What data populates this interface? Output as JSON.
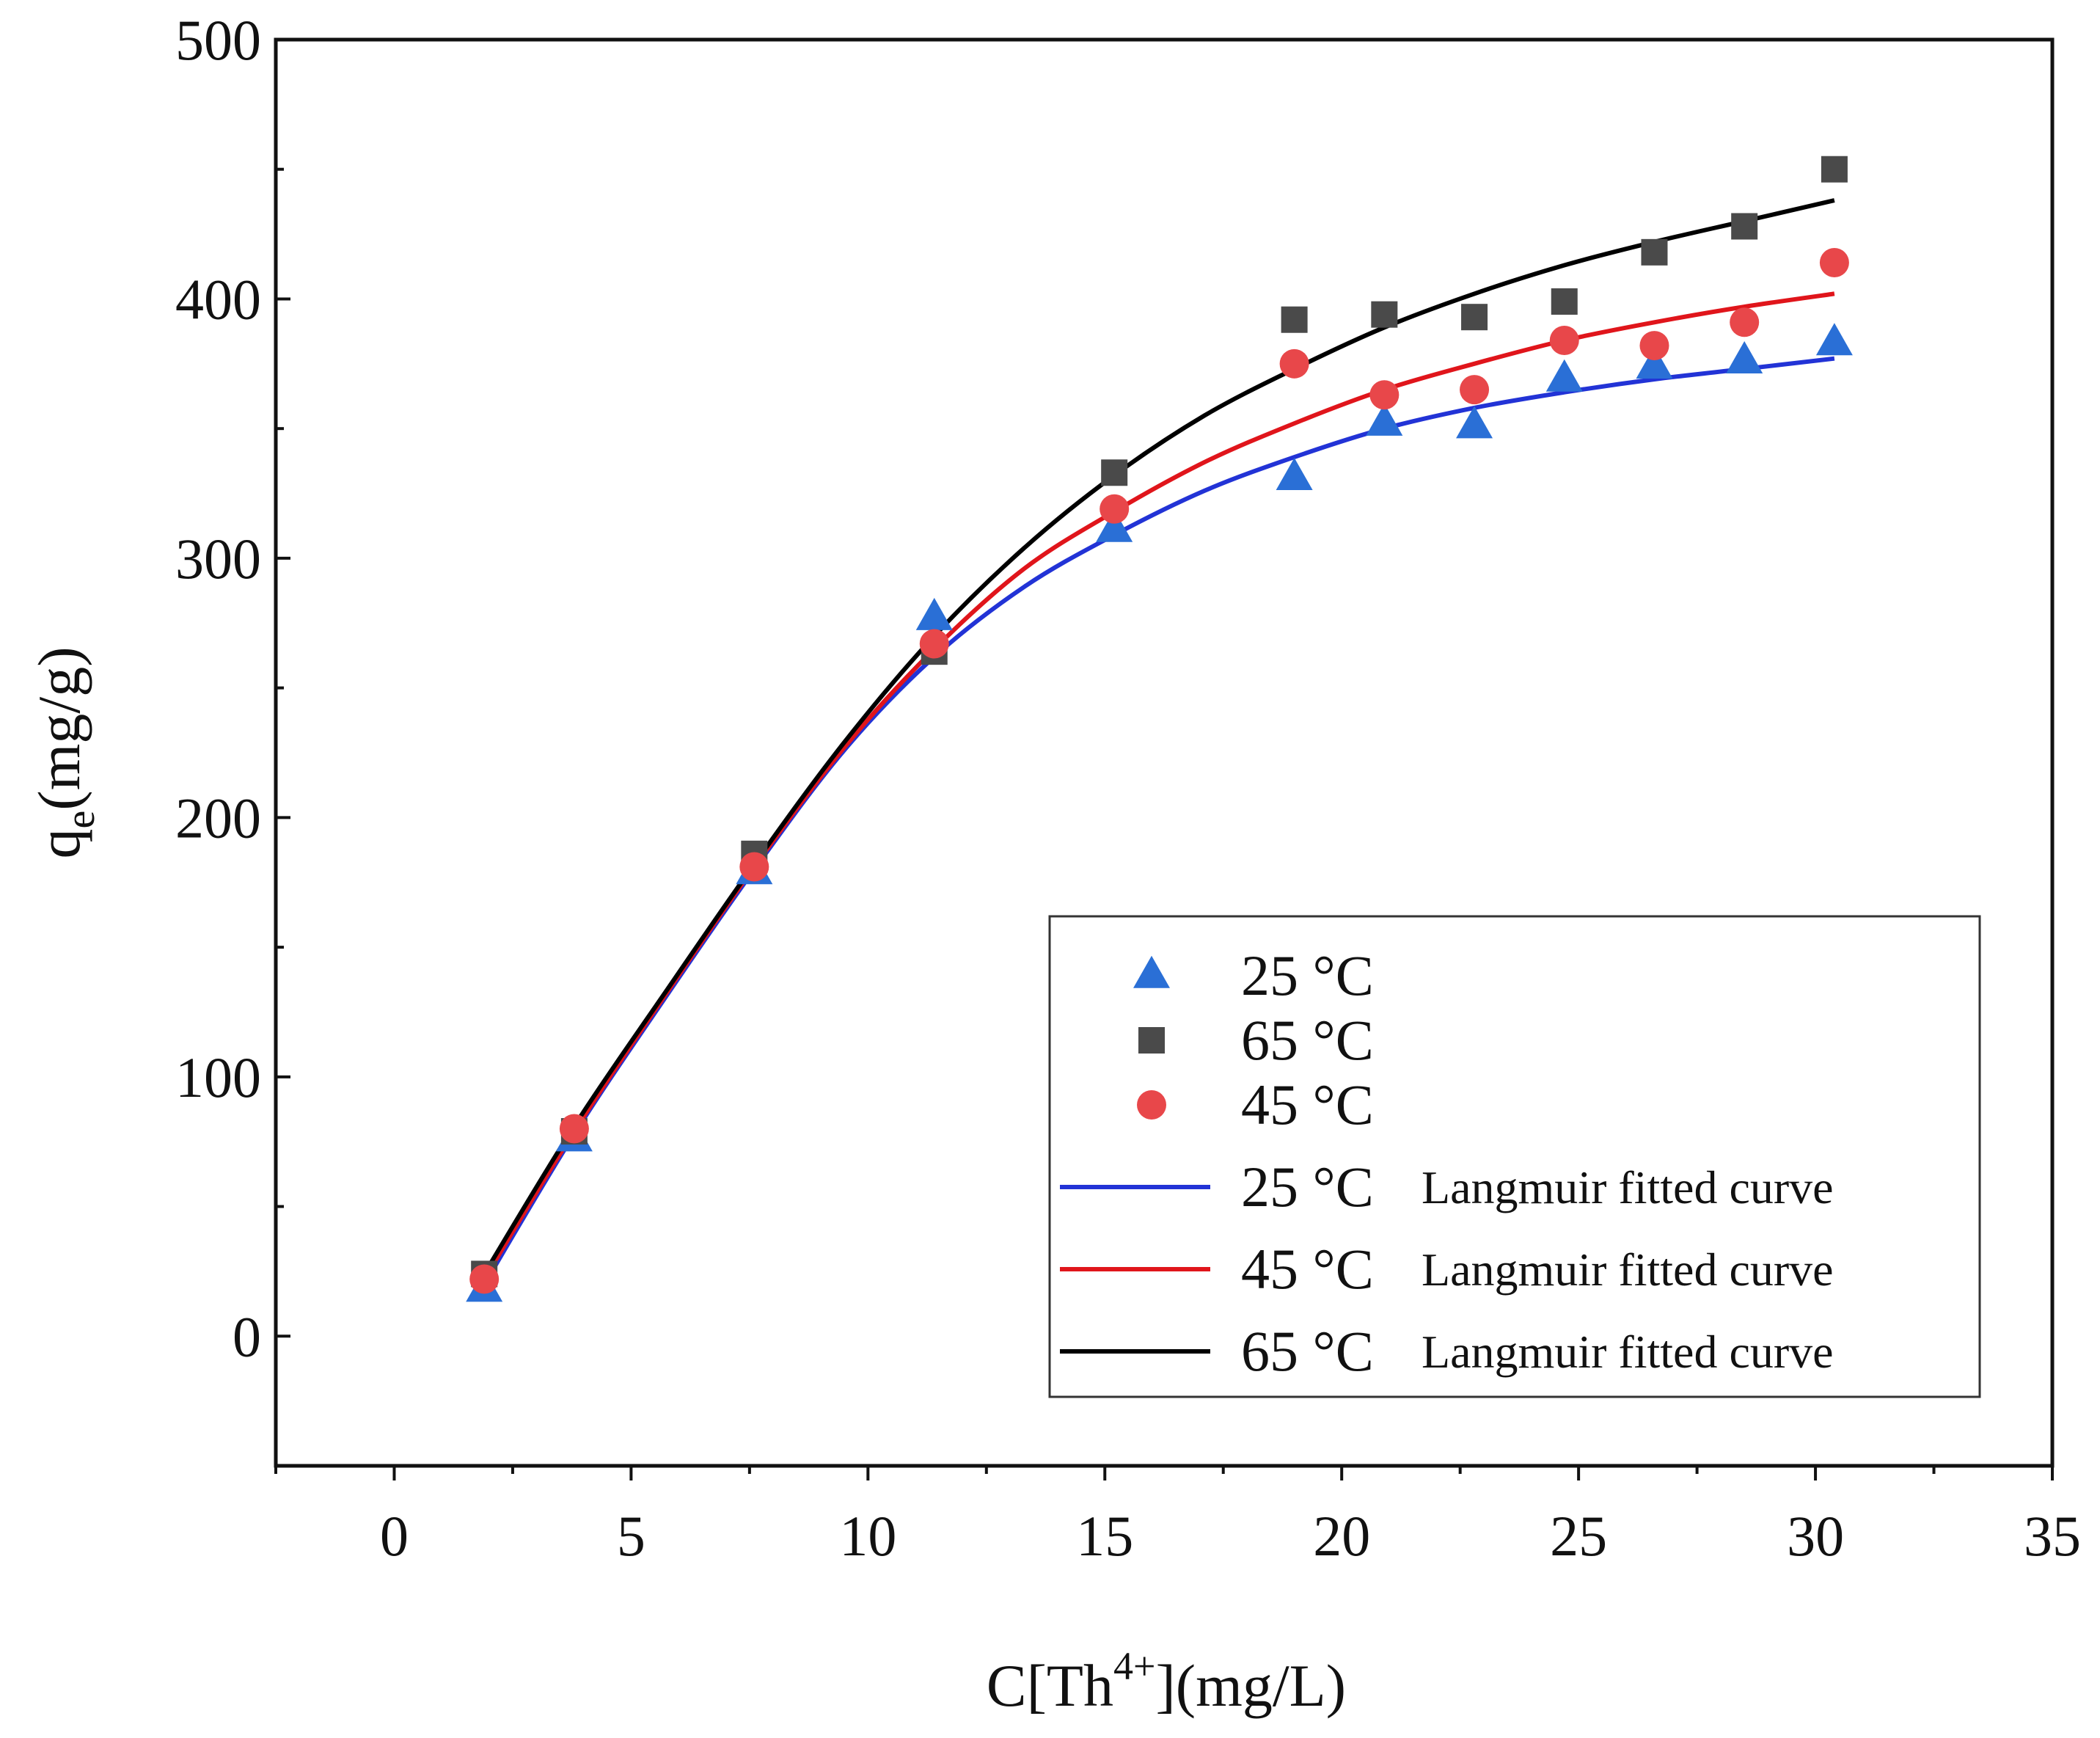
{
  "chart_data": {
    "type": "scatter",
    "title": "",
    "xlabel": {
      "prefix": "C[Th",
      "sup": "4+",
      "suffix": "](mg/L)"
    },
    "ylabel": {
      "prefix": "q",
      "sub": "e",
      "suffix": "(mg/g)"
    },
    "xlim": [
      -2.5,
      35
    ],
    "ylim": [
      -50,
      500
    ],
    "xticks": [
      0,
      5,
      10,
      15,
      20,
      25,
      30,
      35
    ],
    "yticks": [
      0,
      100,
      200,
      300,
      400,
      500
    ],
    "grid": false,
    "legend_position": "bottom-right",
    "scatter_series": [
      {
        "name": "25 °C",
        "marker": "triangle",
        "color": "#2a6fd6",
        "x": [
          1.9,
          3.8,
          7.6,
          11.4,
          15.2,
          19.0,
          20.9,
          22.8,
          24.7,
          26.6,
          28.5,
          30.4
        ],
        "y": [
          18,
          76,
          179,
          277,
          311,
          331,
          352,
          351,
          369,
          374,
          376,
          383
        ]
      },
      {
        "name": "65 °C",
        "marker": "square",
        "color": "#4a4a4a",
        "x": [
          1.9,
          3.8,
          7.6,
          11.4,
          15.2,
          19.0,
          20.9,
          22.8,
          24.7,
          26.6,
          28.5,
          30.4
        ],
        "y": [
          24,
          79,
          186,
          264,
          333,
          392,
          394,
          393,
          399,
          418,
          428,
          450
        ]
      },
      {
        "name": "45 °C",
        "marker": "circle",
        "color": "#e8474a",
        "x": [
          1.9,
          3.8,
          7.6,
          11.4,
          15.2,
          19.0,
          20.9,
          22.8,
          24.7,
          26.6,
          28.5,
          30.4
        ],
        "y": [
          22,
          80,
          181,
          267,
          319,
          375,
          363,
          365,
          384,
          382,
          391,
          414
        ]
      }
    ],
    "line_series": [
      {
        "name": "25 °C Langmuir fitted curve",
        "color": "#2233d6",
        "x": [
          1.9,
          3.8,
          5.7,
          7.6,
          9.5,
          11.4,
          13.3,
          15.2,
          17.1,
          19.0,
          20.9,
          22.8,
          24.7,
          26.6,
          28.5,
          30.4
        ],
        "y": [
          20,
          78,
          130,
          180,
          226,
          262,
          289,
          309,
          326,
          339,
          350,
          358,
          364,
          369,
          373,
          377
        ]
      },
      {
        "name": "45 °C Langmuir fitted curve",
        "color": "#e0151b",
        "x": [
          1.9,
          3.8,
          5.7,
          7.6,
          9.5,
          11.4,
          13.3,
          15.2,
          17.1,
          19.0,
          20.9,
          22.8,
          24.7,
          26.6,
          28.5,
          30.4
        ],
        "y": [
          22,
          79,
          131,
          181,
          227,
          265,
          296,
          318,
          337,
          352,
          365,
          375,
          384,
          391,
          397,
          402
        ]
      },
      {
        "name": "65 °C Langmuir fitted curve",
        "color": "#000000",
        "x": [
          1.9,
          3.8,
          5.7,
          7.6,
          9.5,
          11.4,
          13.3,
          15.2,
          17.1,
          19.0,
          20.9,
          22.8,
          24.7,
          26.6,
          28.5,
          30.4
        ],
        "y": [
          24,
          81,
          132,
          182,
          229,
          270,
          304,
          332,
          355,
          373,
          389,
          402,
          413,
          422,
          430,
          438
        ]
      }
    ],
    "legend": {
      "entries": [
        {
          "temp": "25 °C",
          "desc": "",
          "type": "marker",
          "marker": "triangle",
          "color": "#2a6fd6"
        },
        {
          "temp": "65 °C",
          "desc": "",
          "type": "marker",
          "marker": "square",
          "color": "#4a4a4a"
        },
        {
          "temp": "45 °C",
          "desc": "",
          "type": "marker",
          "marker": "circle",
          "color": "#e8474a"
        },
        {
          "temp": "25 °C",
          "desc": "Langmuir fitted curve",
          "type": "line",
          "color": "#2233d6"
        },
        {
          "temp": "45 °C",
          "desc": "Langmuir fitted curve",
          "type": "line",
          "color": "#e0151b"
        },
        {
          "temp": "65 °C",
          "desc": "Langmuir fitted curve",
          "type": "line",
          "color": "#000000"
        }
      ]
    }
  }
}
